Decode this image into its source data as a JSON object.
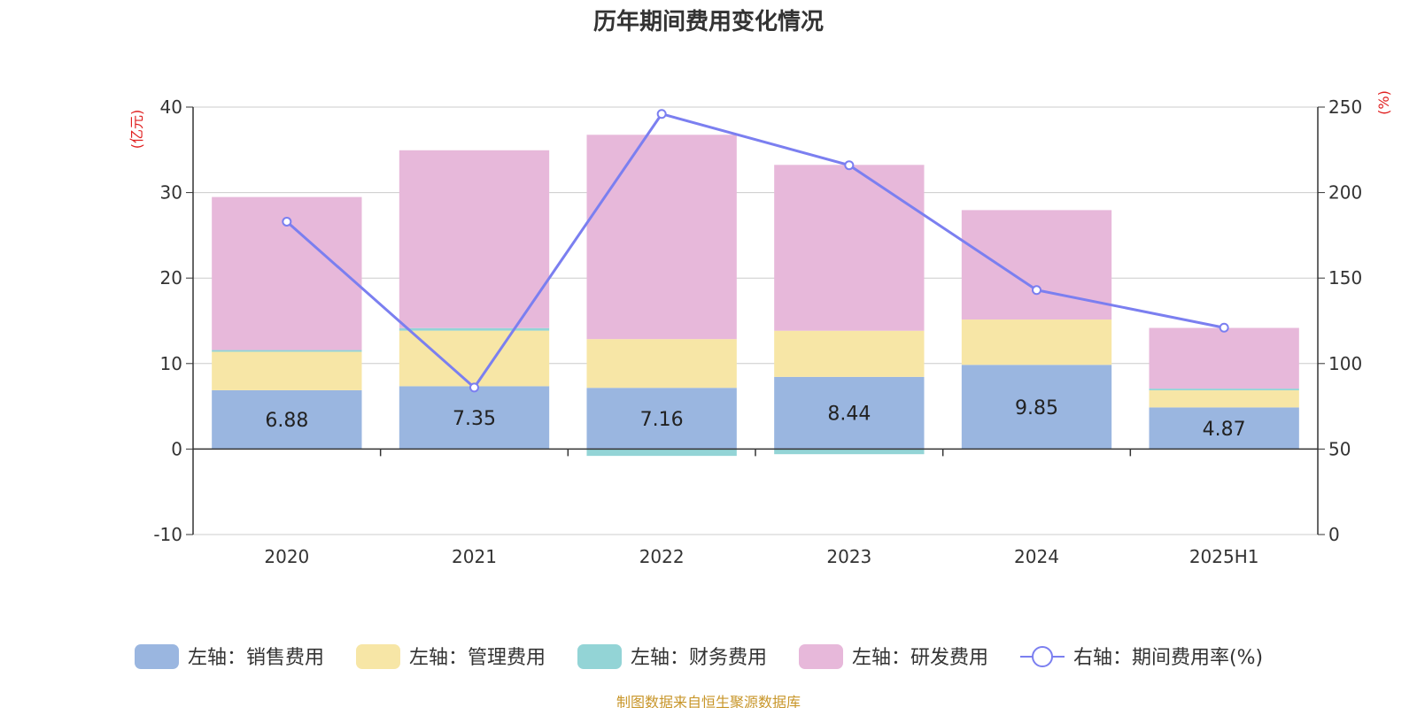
{
  "chart_data": {
    "type": "bar",
    "stacked": true,
    "title": "历年期间费用变化情况",
    "categories": [
      "2020",
      "2021",
      "2022",
      "2023",
      "2024",
      "2025H1"
    ],
    "left_axis": {
      "unit": "(亿元)",
      "ylim": [
        -10,
        40
      ],
      "ticks": [
        "40",
        "30",
        "20",
        "10",
        "0",
        "-10"
      ],
      "tick_values": [
        40,
        30,
        20,
        10,
        0,
        -10
      ]
    },
    "right_axis": {
      "unit": "(%)",
      "ylim": [
        0,
        250
      ],
      "ticks": [
        "250",
        "200",
        "150",
        "100",
        "50",
        "0"
      ],
      "tick_values": [
        250,
        200,
        150,
        100,
        50,
        0
      ]
    },
    "series": [
      {
        "name": "左轴：销售费用",
        "axis": "left",
        "color": "#9ab6e0",
        "values": [
          6.88,
          7.35,
          7.16,
          8.44,
          9.85,
          4.87
        ],
        "labels": [
          "6.88",
          "7.35",
          "7.16",
          "8.44",
          "9.85",
          "4.87"
        ]
      },
      {
        "name": "左轴：管理费用",
        "axis": "left",
        "color": "#f7e6a6",
        "values": [
          4.5,
          6.5,
          5.7,
          5.4,
          5.3,
          2.0
        ]
      },
      {
        "name": "左轴：财务费用",
        "axis": "left",
        "color": "#93d4d6",
        "values": [
          0.2,
          0.3,
          -0.8,
          -0.6,
          0.0,
          0.2
        ]
      },
      {
        "name": "左轴：研发费用",
        "axis": "left",
        "color": "#e7b8da",
        "values": [
          17.9,
          20.8,
          23.9,
          19.4,
          12.8,
          7.1
        ]
      }
    ],
    "line": {
      "name": "右轴：期间费用率(%)",
      "axis": "right",
      "color": "#7b7ff0",
      "values": [
        183,
        86,
        246,
        216,
        143,
        121
      ]
    },
    "grid": true,
    "legend_position": "bottom"
  },
  "source_note": "制图数据来自恒生聚源数据库"
}
